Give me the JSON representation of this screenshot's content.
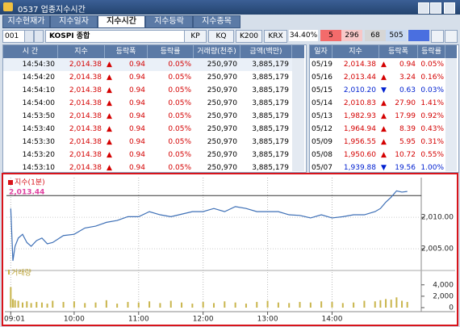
{
  "window": {
    "title": "0537 업종지수시간"
  },
  "tabs": [
    "지수현재가",
    "지수일자",
    "지수시간",
    "지수등락",
    "지수종목"
  ],
  "toolbar": {
    "code": "001",
    "name": "KOSPI 종합",
    "buttons": [
      "KP",
      "KQ",
      "K200",
      "KRX"
    ],
    "ratio": "34.40%",
    "counts": [
      "5",
      "296",
      "68",
      "505"
    ]
  },
  "time_table": {
    "headers": [
      "시 간",
      "지수",
      "등락폭",
      "등락률",
      "거래량(천주)",
      "금액(백만)"
    ],
    "rows": [
      [
        "14:54:30",
        "2,014.38",
        "▲",
        "0.94",
        "0.05%",
        "250,970",
        "3,885,179"
      ],
      [
        "14:54:20",
        "2,014.38",
        "▲",
        "0.94",
        "0.05%",
        "250,970",
        "3,885,179"
      ],
      [
        "14:54:10",
        "2,014.38",
        "▲",
        "0.94",
        "0.05%",
        "250,970",
        "3,885,179"
      ],
      [
        "14:54:00",
        "2,014.38",
        "▲",
        "0.94",
        "0.05%",
        "250,970",
        "3,885,179"
      ],
      [
        "14:53:50",
        "2,014.38",
        "▲",
        "0.94",
        "0.05%",
        "250,970",
        "3,885,179"
      ],
      [
        "14:53:40",
        "2,014.38",
        "▲",
        "0.94",
        "0.05%",
        "250,970",
        "3,885,179"
      ],
      [
        "14:53:30",
        "2,014.38",
        "▲",
        "0.94",
        "0.05%",
        "250,970",
        "3,885,179"
      ],
      [
        "14:53:20",
        "2,014.38",
        "▲",
        "0.94",
        "0.05%",
        "250,970",
        "3,885,179"
      ],
      [
        "14:53:10",
        "2,014.38",
        "▲",
        "0.94",
        "0.05%",
        "250,970",
        "3,885,179"
      ]
    ]
  },
  "daily_table": {
    "headers": [
      "일자",
      "지수",
      "등락폭",
      "등락률"
    ],
    "rows": [
      {
        "cells": [
          "05/19",
          "2,014.38",
          "▲",
          "0.94",
          "0.05%"
        ],
        "color": "#d40000"
      },
      {
        "cells": [
          "05/16",
          "2,013.44",
          "▲",
          "3.24",
          "0.16%"
        ],
        "color": "#d40000"
      },
      {
        "cells": [
          "05/15",
          "2,010.20",
          "▼",
          "0.63",
          "0.03%"
        ],
        "color": "#0020d0"
      },
      {
        "cells": [
          "05/14",
          "2,010.83",
          "▲",
          "27.90",
          "1.41%"
        ],
        "color": "#d40000"
      },
      {
        "cells": [
          "05/13",
          "1,982.93",
          "▲",
          "17.99",
          "0.92%"
        ],
        "color": "#d40000"
      },
      {
        "cells": [
          "05/12",
          "1,964.94",
          "▲",
          "8.39",
          "0.43%"
        ],
        "color": "#d40000"
      },
      {
        "cells": [
          "05/09",
          "1,956.55",
          "▲",
          "5.95",
          "0.31%"
        ],
        "color": "#d40000"
      },
      {
        "cells": [
          "05/08",
          "1,950.60",
          "▲",
          "10.72",
          "0.55%"
        ],
        "color": "#d40000"
      },
      {
        "cells": [
          "05/07",
          "1,939.88",
          "▼",
          "19.56",
          "1.00%"
        ],
        "color": "#0020d0"
      }
    ]
  },
  "chart": {
    "type": "line",
    "x": [
      "09:01",
      "09:03",
      "09:05",
      "09:08",
      "09:12",
      "09:16",
      "09:20",
      "09:25",
      "09:30",
      "09:35",
      "09:40",
      "09:50",
      "10:00",
      "10:10",
      "10:20",
      "10:30",
      "10:40",
      "10:50",
      "11:00",
      "11:10",
      "11:20",
      "11:30",
      "11:40",
      "11:50",
      "12:00",
      "12:10",
      "12:20",
      "12:30",
      "12:40",
      "12:50",
      "13:00",
      "13:10",
      "13:20",
      "13:30",
      "13:40",
      "13:50",
      "14:00",
      "14:10",
      "14:20",
      "14:30",
      "14:40",
      "14:45",
      "14:50",
      "14:55",
      "15:00",
      "15:05",
      "15:10"
    ],
    "series": [
      {
        "name": "지수(1분)",
        "color": "#3d6fb6",
        "values": [
          2011.4,
          2003.1,
          2005.4,
          2006.7,
          2007.3,
          2006.0,
          2005.4,
          2006.3,
          2006.7,
          2005.8,
          2006.0,
          2007.1,
          2007.3,
          2008.3,
          2008.6,
          2009.2,
          2009.5,
          2010.1,
          2010.1,
          2010.9,
          2010.4,
          2010.1,
          2010.5,
          2010.9,
          2010.9,
          2011.4,
          2010.9,
          2011.7,
          2011.4,
          2010.9,
          2010.9,
          2010.9,
          2010.4,
          2010.3,
          2009.9,
          2010.4,
          2009.9,
          2010.1,
          2010.4,
          2010.4,
          2010.9,
          2011.4,
          2012.4,
          2013.2,
          2014.2,
          2014.0,
          2014.1
        ]
      }
    ],
    "reference": {
      "value": 2013.44,
      "label": "2,013.44"
    },
    "xlim": [
      "08:57",
      "15:23"
    ],
    "xticks": [
      "09:01",
      "10:00",
      "11:00",
      "12:00",
      "13:00",
      "14:00"
    ],
    "ylim": [
      2002.2,
      2015.4
    ],
    "yticks": [
      {
        "value": 2010,
        "label": "2,010.00"
      },
      {
        "value": 2005,
        "label": "2,005.00"
      }
    ],
    "volume": {
      "name": "거래량",
      "color": "#c9b54c",
      "values": [
        3600,
        1500,
        1300,
        1200,
        900,
        1100,
        800,
        1000,
        900,
        700,
        1200,
        1000,
        1100,
        800,
        900,
        1300,
        700,
        1000,
        900,
        1100,
        800,
        1200,
        900,
        700,
        1000,
        800,
        1100,
        900,
        700,
        1000,
        1200,
        900,
        800,
        1000,
        900,
        1100,
        1000,
        800,
        900,
        1200,
        1100,
        1300,
        1500,
        1400,
        1800,
        1200,
        1000
      ],
      "ylim": [
        0,
        5100
      ],
      "yticks": [
        {
          "value": 4000,
          "label": "4,000"
        },
        {
          "value": 2000,
          "label": "2,000"
        },
        0
      ]
    },
    "grid": true
  }
}
